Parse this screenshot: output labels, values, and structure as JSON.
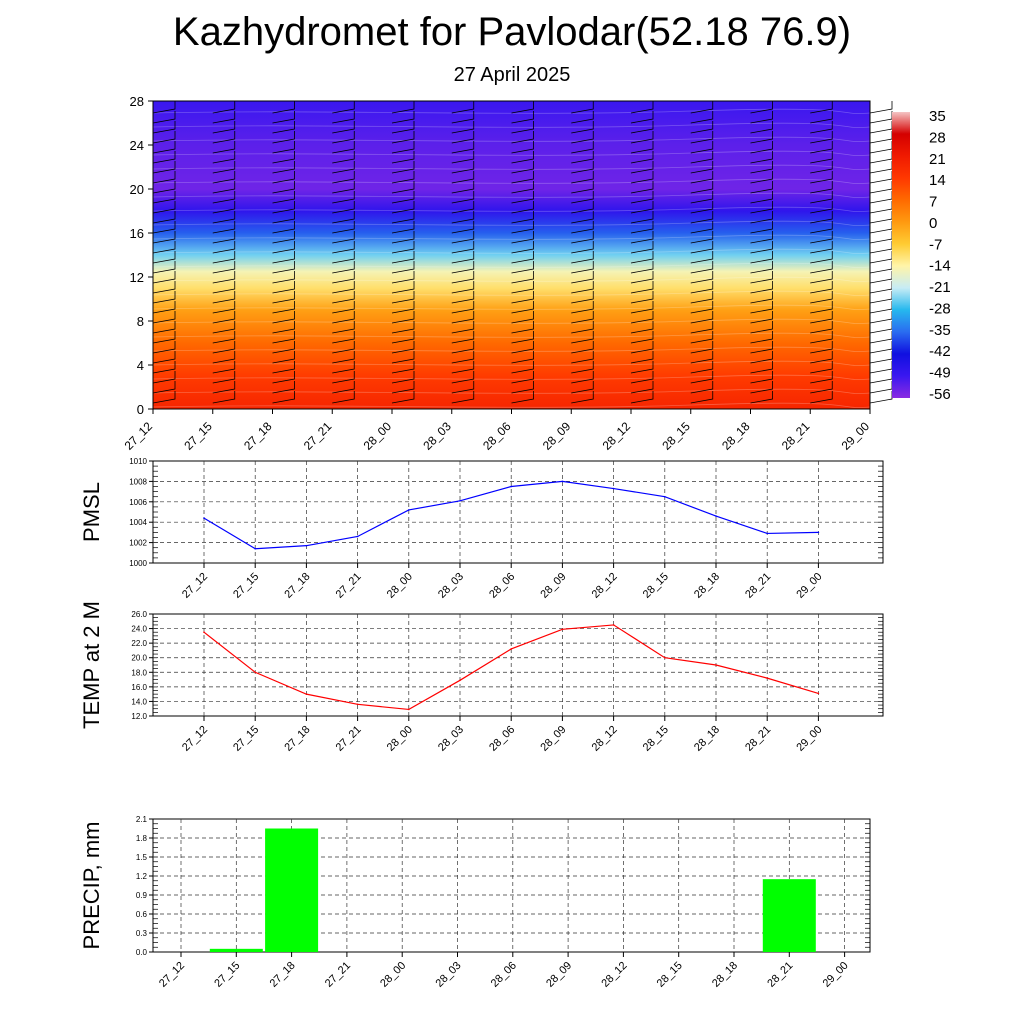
{
  "title": "Kazhydromet for Pavlodar(52.18 76.9)",
  "subtitle": "27 April 2025",
  "chart_data": [
    {
      "type": "heatmap",
      "x_ticks": [
        "27_12",
        "27_15",
        "27_18",
        "27_21",
        "28_00",
        "28_03",
        "28_06",
        "28_09",
        "28_12",
        "28_15",
        "28_18",
        "28_21",
        "29_00"
      ],
      "y_ticks": [
        "0",
        "4",
        "8",
        "12",
        "16",
        "20",
        "24",
        "28"
      ],
      "ylim": [
        0,
        28
      ],
      "colorbar_labels": [
        "35",
        "28",
        "21",
        "14",
        "7",
        "0",
        "-7",
        "-14",
        "-21",
        "-28",
        "-35",
        "-42",
        "-49",
        "-56"
      ],
      "colorbar_range": [
        -63,
        42
      ],
      "temperature_by_level": [
        {
          "level": 0,
          "value": 30
        },
        {
          "level": 3,
          "value": 24
        },
        {
          "level": 6,
          "value": 16
        },
        {
          "level": 9,
          "value": 6
        },
        {
          "level": 11,
          "value": -6
        },
        {
          "level": 12.5,
          "value": -12
        },
        {
          "level": 14,
          "value": -24
        },
        {
          "level": 16,
          "value": -38
        },
        {
          "level": 18,
          "value": -52
        },
        {
          "level": 20,
          "value": -60
        },
        {
          "level": 24,
          "value": -58
        },
        {
          "level": 28,
          "value": -54
        }
      ],
      "wind_barbs": "on",
      "colors": {
        "scale": [
          "#8a2be2",
          "#3a17f0",
          "#1010e0",
          "#2a6cf0",
          "#26b8ee",
          "#c7ecf5",
          "#fff4a8",
          "#ffcc33",
          "#ff9a10",
          "#ff6a00",
          "#ff3800",
          "#f01a00",
          "#d40000",
          "#f5c4c4"
        ]
      }
    },
    {
      "type": "line",
      "ylabel": "PMSL",
      "categories": [
        "27_12",
        "27_15",
        "27_18",
        "27_21",
        "28_00",
        "28_03",
        "28_06",
        "28_09",
        "28_12",
        "28_15",
        "28_18",
        "28_21",
        "29_00"
      ],
      "values": [
        1004.4,
        1001.4,
        1001.7,
        1002.6,
        1005.2,
        1006.1,
        1007.5,
        1008.0,
        1007.3,
        1006.5,
        1004.6,
        1002.9,
        1003.0
      ],
      "ylim": [
        1000,
        1010
      ],
      "y_ticks": [
        "1000",
        "1002",
        "1004",
        "1006",
        "1008",
        "1010"
      ],
      "grid": true,
      "color": "#0000ff"
    },
    {
      "type": "line",
      "ylabel": "TEMP at 2 M",
      "categories": [
        "27_12",
        "27_15",
        "27_18",
        "27_21",
        "28_00",
        "28_03",
        "28_06",
        "28_09",
        "28_12",
        "28_15",
        "28_18",
        "28_21",
        "29_00"
      ],
      "values": [
        23.5,
        18.0,
        15.0,
        13.6,
        12.9,
        16.9,
        21.2,
        23.9,
        24.5,
        20.0,
        19.0,
        17.2,
        15.1
      ],
      "ylim": [
        12,
        26
      ],
      "y_ticks": [
        "12.0",
        "14.0",
        "16.0",
        "18.0",
        "20.0",
        "22.0",
        "24.0",
        "26.0"
      ],
      "grid": true,
      "color": "#ff0000"
    },
    {
      "type": "bar",
      "ylabel": "PRECIP, mm",
      "categories": [
        "27_12",
        "27_15",
        "27_18",
        "27_21",
        "28_00",
        "28_03",
        "28_06",
        "28_09",
        "28_12",
        "28_15",
        "28_18",
        "28_21",
        "29_00"
      ],
      "values": [
        0,
        0.05,
        1.95,
        0,
        0,
        0,
        0,
        0,
        0,
        0,
        0,
        1.15,
        0
      ],
      "ylim": [
        0,
        2.1
      ],
      "y_ticks": [
        "0.0",
        "0.3",
        "0.6",
        "0.9",
        "1.2",
        "1.5",
        "1.8",
        "2.1"
      ],
      "grid": true,
      "color": "#00ff00"
    }
  ]
}
